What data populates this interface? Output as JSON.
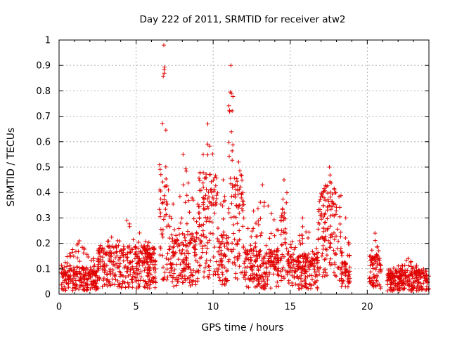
{
  "chart_data": {
    "type": "scatter",
    "title": "Day 222 of 2011, SRMTID for receiver atw2",
    "xlabel": "GPS time / hours",
    "ylabel": "SRMTID / TECUs",
    "xlim": [
      0,
      24
    ],
    "ylim": [
      0,
      1
    ],
    "x_ticks": [
      "0",
      "5",
      "10",
      "15",
      "20"
    ],
    "y_ticks": [
      "0",
      "0.1",
      "0.2",
      "0.3",
      "0.4",
      "0.5",
      "0.6",
      "0.7",
      "0.8",
      "0.9",
      "1"
    ],
    "grid": true,
    "marker": "plus",
    "color": "#e00000",
    "series_profile": [
      {
        "x_start": 0.15,
        "x_end": 2.5,
        "typical": 0.07,
        "max": 0.21
      },
      {
        "x_start": 2.5,
        "x_end": 6.3,
        "typical": 0.12,
        "max": 0.29
      },
      {
        "x_start": 6.5,
        "x_end": 7.1,
        "typical": 0.28,
        "max": 0.98
      },
      {
        "x_start": 7.1,
        "x_end": 9.0,
        "typical": 0.15,
        "max": 0.55
      },
      {
        "x_start": 9.0,
        "x_end": 10.3,
        "typical": 0.3,
        "max": 0.67
      },
      {
        "x_start": 10.3,
        "x_end": 11.0,
        "typical": 0.15,
        "max": 0.45
      },
      {
        "x_start": 11.0,
        "x_end": 11.3,
        "typical": 0.5,
        "max": 0.9
      },
      {
        "x_start": 11.3,
        "x_end": 12.0,
        "typical": 0.3,
        "max": 0.52
      },
      {
        "x_start": 12.0,
        "x_end": 14.4,
        "typical": 0.11,
        "max": 0.43
      },
      {
        "x_start": 14.4,
        "x_end": 14.8,
        "typical": 0.25,
        "max": 0.45
      },
      {
        "x_start": 14.8,
        "x_end": 16.8,
        "typical": 0.1,
        "max": 0.3
      },
      {
        "x_start": 16.8,
        "x_end": 18.3,
        "typical": 0.27,
        "max": 0.5
      },
      {
        "x_start": 18.3,
        "x_end": 18.9,
        "typical": 0.08,
        "max": 0.3
      },
      {
        "x_start": 20.1,
        "x_end": 20.9,
        "typical": 0.1,
        "max": 0.24
      },
      {
        "x_start": 21.3,
        "x_end": 24.0,
        "typical": 0.06,
        "max": 0.14
      }
    ]
  }
}
